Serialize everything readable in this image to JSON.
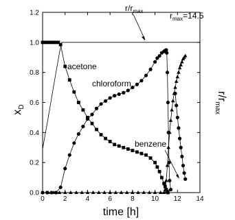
{
  "chart_data": {
    "type": "scatter",
    "xlabel": "time [h]",
    "ylabel_main": "x",
    "ylabel_sub": "D",
    "y2label_main": "r/r",
    "y2label_sub": "max",
    "xlim": [
      0,
      14
    ],
    "ylim": [
      0,
      1.2
    ],
    "xticks": [
      0,
      2,
      4,
      6,
      8,
      10,
      12,
      14
    ],
    "yticks": [
      0.0,
      0.2,
      0.4,
      0.6,
      0.8,
      1.0,
      1.2
    ],
    "ytick_labels": [
      "0.0",
      "0.2",
      "0.4",
      "0.6",
      "0.8",
      "1.0",
      "1.2"
    ],
    "grid": false,
    "annotations": {
      "ratio_main": "r/r",
      "ratio_sub": "max",
      "rmax_main": "r",
      "rmax_sub": "max",
      "rmax_value": "=14.5",
      "acetone": "acetone",
      "chloroform": "chloroform",
      "benzene": "benzene"
    },
    "series": [
      {
        "marker": "square",
        "x": [
          0,
          0.2,
          0.4,
          0.6,
          0.8,
          1.0,
          1.2,
          1.4,
          1.6,
          2.0,
          2.4,
          2.8,
          3.2,
          3.6,
          4.0,
          4.4,
          4.8,
          5.2,
          5.6,
          6.0,
          6.4,
          6.8,
          7.2,
          7.6,
          8.0,
          8.4,
          8.8,
          9.2,
          9.6,
          10.0,
          10.2,
          10.4,
          10.6,
          10.8,
          10.9,
          11.0,
          11.05,
          11.1,
          11.15
        ],
        "y": [
          1.0,
          1.0,
          1.0,
          1.0,
          1.0,
          1.0,
          1.0,
          1.0,
          0.985,
          0.84,
          0.75,
          0.67,
          0.6,
          0.55,
          0.5,
          0.46,
          0.42,
          0.385,
          0.36,
          0.34,
          0.32,
          0.31,
          0.3,
          0.29,
          0.28,
          0.27,
          0.26,
          0.25,
          0.23,
          0.2,
          0.17,
          0.14,
          0.1,
          0.06,
          0.04,
          0.02,
          0.01,
          0.005,
          0.0
        ]
      },
      {
        "marker": "circle",
        "x": [
          0,
          0.4,
          0.8,
          1.2,
          1.6,
          2.0,
          2.4,
          2.8,
          3.2,
          3.6,
          4.0,
          4.4,
          4.8,
          5.2,
          5.6,
          6.0,
          6.4,
          6.8,
          7.2,
          7.6,
          8.0,
          8.4,
          8.8,
          9.2,
          9.6,
          10.0,
          10.2,
          10.4,
          10.6,
          10.8,
          10.9,
          11.0,
          11.05,
          11.1,
          11.15,
          11.2,
          11.25,
          11.3,
          11.4
        ],
        "y": [
          0.0,
          0.0,
          0.0,
          0.0,
          0.035,
          0.16,
          0.25,
          0.33,
          0.39,
          0.44,
          0.49,
          0.52,
          0.56,
          0.59,
          0.61,
          0.63,
          0.645,
          0.655,
          0.665,
          0.68,
          0.7,
          0.72,
          0.745,
          0.78,
          0.82,
          0.87,
          0.895,
          0.91,
          0.93,
          0.94,
          0.945,
          0.95,
          0.93,
          0.8,
          0.6,
          0.4,
          0.2,
          0.08,
          0.02
        ]
      },
      {
        "marker": "triangle",
        "x": [
          0,
          0.5,
          1.0,
          1.5,
          2.0,
          2.5,
          3.0,
          3.5,
          4.0,
          4.5,
          5.0,
          5.5,
          6.0,
          6.5,
          7.0,
          7.5,
          8.0,
          8.5,
          9.0,
          9.5,
          10.0,
          10.5,
          10.8,
          10.9,
          11.0,
          11.1,
          11.2,
          11.3,
          11.4,
          11.5,
          11.6,
          11.7,
          11.8,
          11.9,
          12.0,
          12.1,
          12.2,
          12.3,
          12.4,
          12.5,
          12.6,
          12.7
        ],
        "y": [
          0.0,
          0.0,
          0.0,
          0.0,
          0.0,
          0.0,
          0.0,
          0.0,
          0.0,
          0.0,
          0.0,
          0.0,
          0.0,
          0.0,
          0.0,
          0.0,
          0.0,
          0.0,
          0.0,
          0.0,
          0.0,
          0.0,
          0.0,
          0.02,
          0.08,
          0.18,
          0.3,
          0.4,
          0.48,
          0.55,
          0.61,
          0.66,
          0.7,
          0.74,
          0.77,
          0.8,
          0.83,
          0.85,
          0.87,
          0.89,
          0.9,
          0.91
        ]
      },
      {
        "marker": "circle",
        "x": [
          11.8,
          11.9,
          12.0,
          12.1,
          12.2,
          12.3,
          12.4,
          12.5,
          12.6,
          12.7
        ],
        "y": [
          0.66,
          0.58,
          0.5,
          0.43,
          0.36,
          0.3,
          0.24,
          0.18,
          0.13,
          0.09
        ]
      },
      {
        "marker": "none",
        "x": [
          0,
          0.5,
          1.0,
          1.5,
          1.7,
          14
        ],
        "y": [
          0.29,
          0.5,
          0.72,
          0.93,
          1.0,
          1.0
        ]
      }
    ]
  }
}
